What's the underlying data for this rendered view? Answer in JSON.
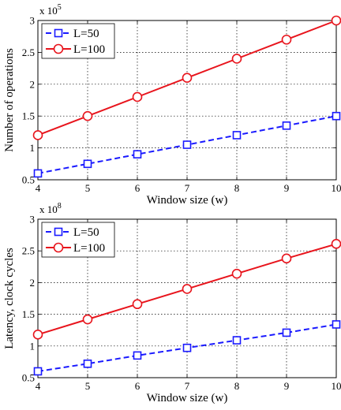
{
  "chart_data": [
    {
      "type": "line",
      "xlabel": "Window size (w)",
      "ylabel": "Number of operations",
      "y_multiplier": "x 10",
      "y_multiplier_exp": "5",
      "x": [
        4,
        5,
        6,
        7,
        8,
        9,
        10
      ],
      "xlim": [
        4,
        10
      ],
      "ylim": [
        0.5,
        3
      ],
      "xticks": [
        "4",
        "5",
        "6",
        "7",
        "8",
        "9",
        "10"
      ],
      "yticks": [
        0.5,
        1,
        1.5,
        2,
        2.5,
        3
      ],
      "ytick_labels": [
        "0.5",
        "1",
        "1.5",
        "2",
        "2.5",
        "3"
      ],
      "grid": true,
      "legend_position": "top-left",
      "series": [
        {
          "name": "L=50",
          "values": [
            0.6,
            0.75,
            0.9,
            1.05,
            1.2,
            1.35,
            1.5
          ],
          "color": "#1a1aff",
          "line": "dashed",
          "marker": "square"
        },
        {
          "name": "L=100",
          "values": [
            1.2,
            1.5,
            1.8,
            2.1,
            2.4,
            2.7,
            3.0
          ],
          "color": "#e8141c",
          "line": "solid",
          "marker": "circle"
        }
      ]
    },
    {
      "type": "line",
      "xlabel": "Window size (w)",
      "ylabel": "Latency, clock cycles",
      "y_multiplier": "x 10",
      "y_multiplier_exp": "8",
      "x": [
        4,
        5,
        6,
        7,
        8,
        9,
        10
      ],
      "xlim": [
        4,
        10
      ],
      "ylim": [
        0.5,
        3
      ],
      "xticks": [
        "4",
        "5",
        "6",
        "7",
        "8",
        "9",
        "10"
      ],
      "yticks": [
        0.5,
        1,
        1.5,
        2,
        2.5,
        3
      ],
      "ytick_labels": [
        "0.5",
        "1",
        "1.5",
        "2",
        "2.5",
        "3"
      ],
      "grid": true,
      "legend_position": "top-left",
      "series": [
        {
          "name": "L=50",
          "values": [
            0.6,
            0.72,
            0.85,
            0.97,
            1.09,
            1.21,
            1.34
          ],
          "color": "#1a1aff",
          "line": "dashed",
          "marker": "square"
        },
        {
          "name": "L=100",
          "values": [
            1.18,
            1.42,
            1.66,
            1.9,
            2.14,
            2.38,
            2.61
          ],
          "color": "#e8141c",
          "line": "solid",
          "marker": "circle"
        }
      ]
    }
  ]
}
